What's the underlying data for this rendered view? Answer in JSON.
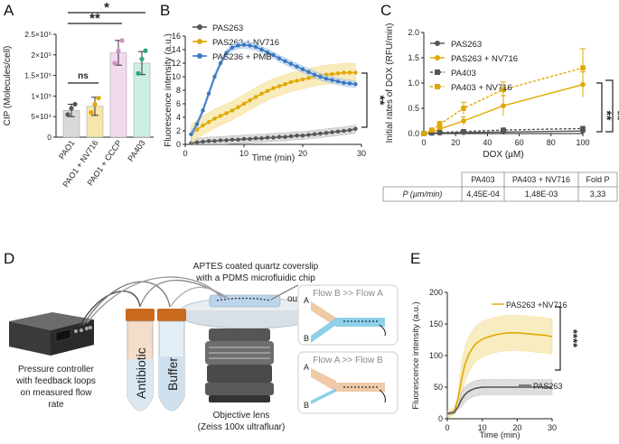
{
  "figure": {
    "panel_labels": [
      "A",
      "B",
      "C",
      "D",
      "E"
    ]
  },
  "colors": {
    "grey": "#555555",
    "gold": "#e0a800",
    "blue": "#3a78c0",
    "light_gold": "#f5e3a0",
    "light_blue": "#b8d0ec",
    "light_grey": "#cccccc",
    "pink": "#d38fc6",
    "teal": "#2fa67a",
    "bar_grey": "#d9d9d9",
    "bar_gold": "#f6e6ad",
    "bar_pink": "#f2d9ee",
    "bar_teal": "#cdeee2"
  },
  "chart_data": [
    {
      "id": "A",
      "type": "bar",
      "ylabel": "CIP (Molecules/cell)",
      "ylim": [
        0,
        250000
      ],
      "yticks": [
        0,
        50000,
        100000,
        150000,
        200000,
        250000
      ],
      "ytick_labels": [
        "0",
        "5×10⁴",
        "1×10⁵",
        "1.5×10⁵",
        "2×10⁵",
        "2.5×10⁵"
      ],
      "categories": [
        "PAO1",
        "PAO1 + NV716",
        "PAO1 + CCCP",
        "PA403"
      ],
      "values": [
        65000,
        75000,
        205000,
        180000
      ],
      "errors": [
        15000,
        22000,
        30000,
        28000
      ],
      "points": [
        [
          55000,
          70000,
          80000
        ],
        [
          60000,
          80000,
          95000
        ],
        [
          180000,
          210000,
          235000
        ],
        [
          155000,
          190000,
          210000
        ]
      ],
      "significance": [
        {
          "label": "ns",
          "from": 0,
          "to": 1
        },
        {
          "label": "**",
          "from": 0,
          "to": 2
        },
        {
          "label": "*",
          "from": 0,
          "to": 3
        }
      ]
    },
    {
      "id": "B",
      "type": "line",
      "xlabel": "Time (min)",
      "ylabel": "Fluorescence intensity (a.u.)",
      "xlim": [
        0,
        30
      ],
      "ylim": [
        0,
        16
      ],
      "xticks": [
        0,
        10,
        20,
        30
      ],
      "yticks": [
        0,
        2,
        4,
        6,
        8,
        10,
        12,
        14,
        16
      ],
      "series": [
        {
          "name": "PAS263",
          "color": "grey",
          "x": [
            1,
            2,
            3,
            4,
            5,
            6,
            7,
            8,
            9,
            10,
            11,
            12,
            13,
            14,
            15,
            16,
            17,
            18,
            19,
            20,
            21,
            22,
            23,
            24,
            25,
            26,
            27,
            28,
            29
          ],
          "y": [
            0.2,
            0.3,
            0.4,
            0.5,
            0.5,
            0.6,
            0.6,
            0.7,
            0.7,
            0.8,
            0.8,
            0.9,
            0.9,
            1.0,
            1.0,
            1.1,
            1.1,
            1.2,
            1.3,
            1.3,
            1.4,
            1.5,
            1.6,
            1.7,
            1.8,
            1.9,
            2.0,
            2.1,
            2.3
          ],
          "band": 0.6
        },
        {
          "name": "PAS263 + NV716",
          "color": "gold",
          "x": [
            1,
            2,
            3,
            4,
            5,
            6,
            7,
            8,
            9,
            10,
            11,
            12,
            13,
            14,
            15,
            16,
            17,
            18,
            19,
            20,
            21,
            22,
            23,
            24,
            25,
            26,
            27,
            28,
            29
          ],
          "y": [
            1.5,
            2.2,
            2.8,
            3.3,
            3.8,
            4.2,
            4.6,
            5.0,
            5.5,
            6.0,
            6.5,
            7.0,
            7.5,
            7.9,
            8.3,
            8.6,
            8.9,
            9.2,
            9.4,
            9.6,
            9.8,
            10.0,
            10.2,
            10.3,
            10.4,
            10.5,
            10.6,
            10.6,
            10.6
          ],
          "band": 1.4
        },
        {
          "name": "PAS236 + PMB",
          "color": "blue",
          "x": [
            1,
            2,
            3,
            4,
            5,
            6,
            7,
            8,
            9,
            10,
            11,
            12,
            13,
            14,
            15,
            16,
            17,
            18,
            19,
            20,
            21,
            22,
            23,
            24,
            25,
            26,
            27,
            28,
            29
          ],
          "y": [
            1.5,
            3.0,
            5.0,
            7.5,
            10.0,
            12.0,
            13.5,
            14.3,
            14.6,
            14.7,
            14.6,
            14.4,
            14.0,
            13.6,
            13.2,
            12.7,
            12.3,
            11.9,
            11.5,
            11.1,
            10.7,
            10.3,
            10.0,
            9.7,
            9.5,
            9.3,
            9.1,
            9.0,
            8.9
          ],
          "band": 0.5
        }
      ],
      "significance": [
        {
          "label": "**"
        }
      ]
    },
    {
      "id": "C",
      "type": "line",
      "xlabel": "DOX (µM)",
      "ylabel": "Initial rates of DOX (RFU/min)",
      "xlim": [
        0,
        100
      ],
      "ylim": [
        0,
        2.0
      ],
      "xticks": [
        0,
        20,
        40,
        60,
        80,
        100
      ],
      "yticks": [
        0,
        0.5,
        1.0,
        1.5,
        2.0
      ],
      "ytick_labels": [
        "0.0",
        "0.5",
        "1.0",
        "1.5",
        "2.0"
      ],
      "series": [
        {
          "name": "PAS263",
          "color": "grey",
          "marker": "circle",
          "dashed": false,
          "x": [
            0,
            5,
            10,
            25,
            50,
            100
          ],
          "y": [
            0,
            0.01,
            0.01,
            0.02,
            0.03,
            0.05
          ],
          "err": [
            0,
            0.01,
            0.01,
            0.01,
            0.02,
            0.02
          ]
        },
        {
          "name": "PAS263 + NV716",
          "color": "gold",
          "marker": "circle",
          "dashed": false,
          "x": [
            0,
            5,
            10,
            25,
            50,
            100
          ],
          "y": [
            0,
            0.03,
            0.09,
            0.25,
            0.55,
            0.97
          ],
          "err": [
            0,
            0.02,
            0.04,
            0.08,
            0.2,
            0.25
          ]
        },
        {
          "name": "PA403",
          "color": "grey",
          "marker": "square",
          "dashed": true,
          "x": [
            0,
            5,
            10,
            25,
            50,
            100
          ],
          "y": [
            0,
            0.01,
            0.02,
            0.04,
            0.07,
            0.1
          ],
          "err": [
            0,
            0.01,
            0.01,
            0.02,
            0.02,
            0.03
          ]
        },
        {
          "name": "PA403 + NV716",
          "color": "gold",
          "marker": "square",
          "dashed": true,
          "x": [
            0,
            5,
            10,
            25,
            50,
            100
          ],
          "y": [
            0,
            0.07,
            0.18,
            0.5,
            0.87,
            1.3
          ],
          "err": [
            0,
            0.03,
            0.06,
            0.12,
            0.15,
            0.38
          ]
        }
      ],
      "significance": [
        {
          "label": "**"
        },
        {
          "label": "**"
        }
      ]
    },
    {
      "id": "C-table",
      "type": "table",
      "headers": [
        "",
        "PA403",
        "PA403 + NV716",
        "Fold P"
      ],
      "rows": [
        [
          "P (µm/min)",
          "4,45E-04",
          "1,48E-03",
          "3,33"
        ]
      ]
    },
    {
      "id": "E",
      "type": "line",
      "xlabel": "Time (min)",
      "ylabel": "Fluorescence intensity (a.u.)",
      "xlim": [
        0,
        30
      ],
      "ylim": [
        0,
        200
      ],
      "xticks": [
        0,
        10,
        20,
        30
      ],
      "yticks": [
        0,
        50,
        100,
        150,
        200
      ],
      "series": [
        {
          "name": "PAS263 +NV716",
          "color": "gold",
          "x": [
            0,
            1,
            2,
            3,
            4,
            5,
            6,
            7,
            8,
            9,
            10,
            12,
            14,
            16,
            18,
            20,
            22,
            24,
            26,
            28,
            30
          ],
          "y": [
            8,
            9,
            12,
            30,
            60,
            85,
            100,
            110,
            118,
            122,
            126,
            130,
            133,
            135,
            136,
            136,
            135,
            134,
            133,
            132,
            130
          ],
          "band": 28
        },
        {
          "name": "PAS263",
          "color": "grey",
          "x": [
            0,
            1,
            2,
            3,
            4,
            5,
            6,
            7,
            8,
            9,
            10,
            12,
            14,
            16,
            18,
            20,
            22,
            24,
            26,
            28,
            30
          ],
          "y": [
            8,
            9,
            10,
            18,
            30,
            38,
            43,
            46,
            48,
            49,
            50,
            50,
            50,
            50,
            50,
            50,
            50,
            50,
            50,
            50,
            50
          ],
          "band": 12
        }
      ],
      "significance": [
        {
          "label": "****"
        }
      ]
    }
  ],
  "diagram": {
    "chip_title_1": "APTES coated quartz coverslip",
    "chip_title_2": "with a PDMS microfluidic chip",
    "outlet": "outlet",
    "controller_1": "Pressure controller",
    "controller_2": "with feedback loops",
    "controller_3": "on measured flow",
    "controller_4": "rate",
    "tube_antibiotic": "Antibiotic",
    "tube_buffer": "Buffer",
    "lens_1": "Objective lens",
    "lens_2": "(Zeiss 100x ultrafluar)",
    "flow_top_title": "Flow B >> Flow A",
    "flow_bottom_title": "Flow A >> Flow B",
    "flow_label_a": "A",
    "flow_label_b": "B"
  }
}
